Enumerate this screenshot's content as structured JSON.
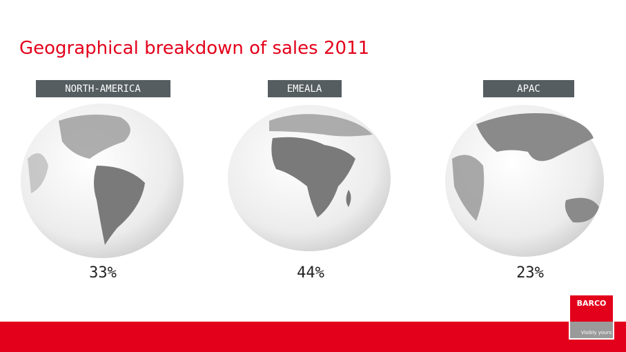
{
  "header": {
    "title": "Geographical breakdown of sales 2011"
  },
  "regions": [
    {
      "name": "NORTH-AMERICA",
      "share": "33%"
    },
    {
      "name": "EMEALA",
      "share": "44%"
    },
    {
      "name": "APAC",
      "share": "23%"
    }
  ],
  "logo": {
    "brand": "BARCO",
    "tagline": "Visibly yours"
  }
}
